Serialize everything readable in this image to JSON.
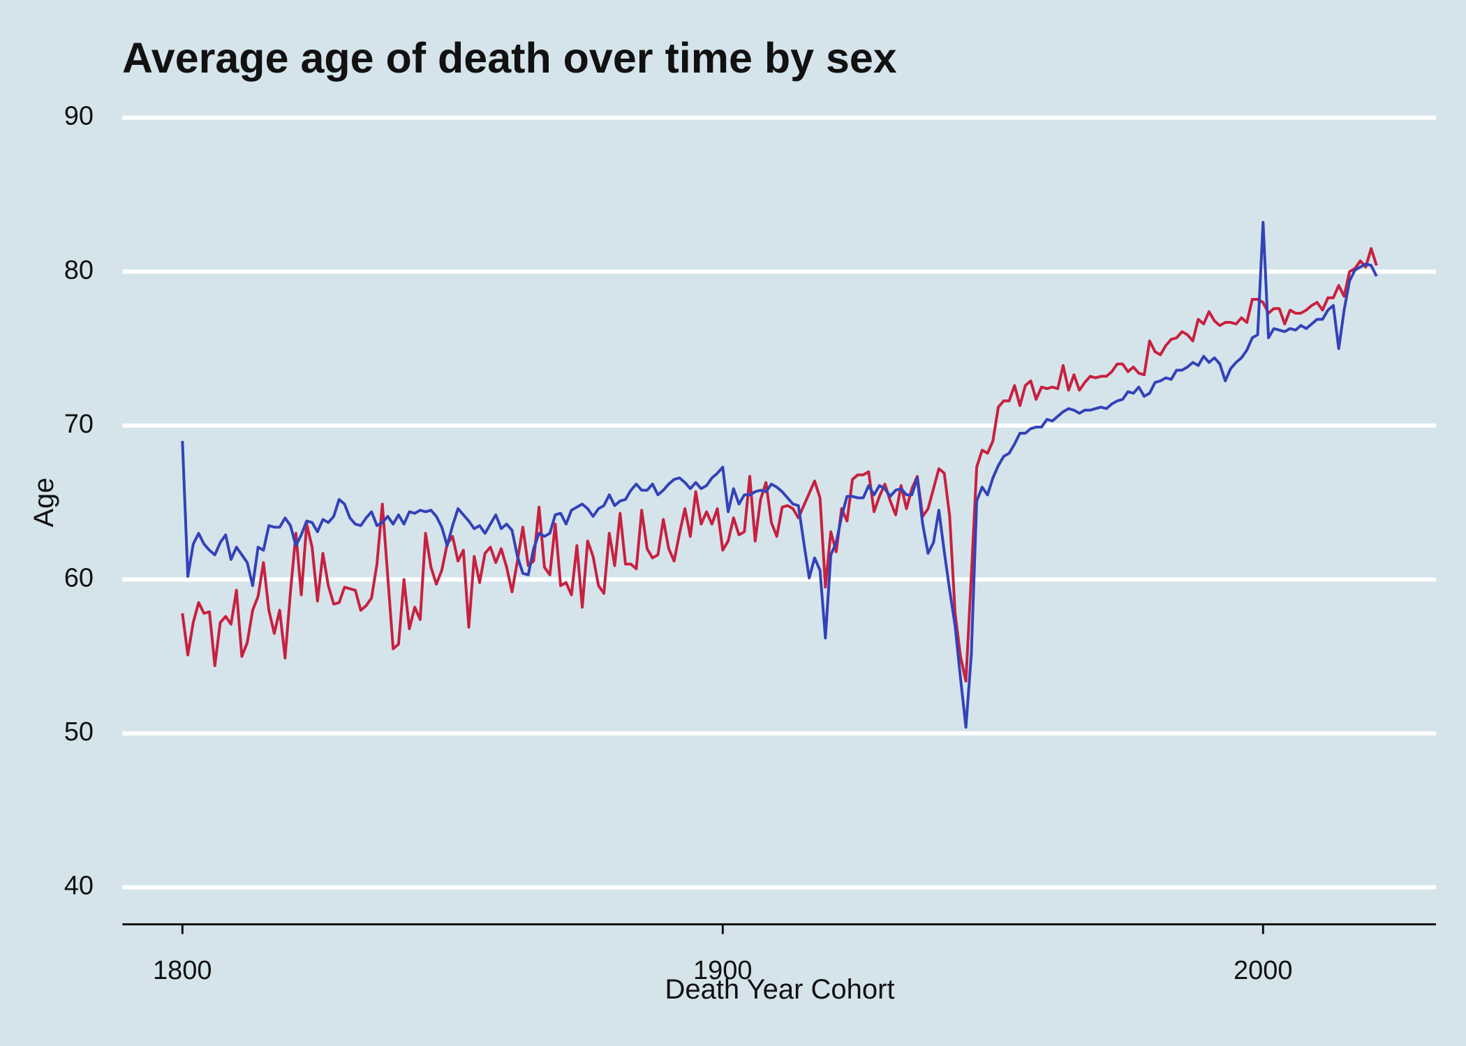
{
  "chart_data": {
    "type": "line",
    "title": "Average age of death over time by sex",
    "x_label": "Death Year Cohort",
    "y_label": "Age",
    "xlim": [
      1788.9,
      2032
    ],
    "xticks": [
      1800,
      1900,
      2000
    ],
    "ylim": [
      37.6,
      91
    ],
    "yticks": [
      40,
      50,
      60,
      70,
      80,
      90
    ],
    "grid": true,
    "x": [
      1800,
      1801,
      1802,
      1803,
      1804,
      1805,
      1806,
      1807,
      1808,
      1809,
      1810,
      1811,
      1812,
      1813,
      1814,
      1815,
      1816,
      1817,
      1818,
      1819,
      1820,
      1821,
      1822,
      1823,
      1824,
      1825,
      1826,
      1827,
      1828,
      1829,
      1830,
      1831,
      1832,
      1833,
      1834,
      1835,
      1836,
      1837,
      1838,
      1839,
      1840,
      1841,
      1842,
      1843,
      1844,
      1845,
      1846,
      1847,
      1848,
      1849,
      1850,
      1851,
      1852,
      1853,
      1854,
      1855,
      1856,
      1857,
      1858,
      1859,
      1860,
      1861,
      1862,
      1863,
      1864,
      1865,
      1866,
      1867,
      1868,
      1869,
      1870,
      1871,
      1872,
      1873,
      1874,
      1875,
      1876,
      1877,
      1878,
      1879,
      1880,
      1881,
      1882,
      1883,
      1884,
      1885,
      1886,
      1887,
      1888,
      1889,
      1890,
      1891,
      1892,
      1893,
      1894,
      1895,
      1896,
      1897,
      1898,
      1899,
      1900,
      1901,
      1902,
      1903,
      1904,
      1905,
      1906,
      1907,
      1908,
      1909,
      1910,
      1911,
      1912,
      1913,
      1914,
      1915,
      1916,
      1917,
      1918,
      1919,
      1920,
      1921,
      1922,
      1923,
      1924,
      1925,
      1926,
      1927,
      1928,
      1929,
      1930,
      1931,
      1932,
      1933,
      1934,
      1935,
      1936,
      1937,
      1938,
      1939,
      1940,
      1941,
      1942,
      1943,
      1944,
      1945,
      1946,
      1947,
      1948,
      1949,
      1950,
      1951,
      1952,
      1953,
      1954,
      1955,
      1956,
      1957,
      1958,
      1959,
      1960,
      1961,
      1962,
      1963,
      1964,
      1965,
      1966,
      1967,
      1968,
      1969,
      1970,
      1971,
      1972,
      1973,
      1974,
      1975,
      1976,
      1977,
      1978,
      1979,
      1980,
      1981,
      1982,
      1983,
      1984,
      1985,
      1986,
      1987,
      1988,
      1989,
      1990,
      1991,
      1992,
      1993,
      1994,
      1995,
      1996,
      1997,
      1998,
      1999,
      2000,
      2001,
      2002,
      2003,
      2004,
      2005,
      2006,
      2007,
      2008,
      2009,
      2010,
      2011,
      2012,
      2013,
      2014,
      2015,
      2016,
      2017,
      2018,
      2019,
      2020,
      2021
    ],
    "series": [
      {
        "color": "#c8203f",
        "values": [
          57.8,
          55.1,
          57.2,
          58.5,
          57.8,
          57.9,
          54.4,
          57.2,
          57.6,
          57.1,
          59.3,
          55.0,
          55.9,
          58.0,
          58.9,
          61.1,
          58.0,
          56.5,
          58.0,
          54.9,
          59.2,
          63.0,
          59.0,
          63.6,
          62.1,
          58.6,
          61.7,
          59.6,
          58.4,
          58.5,
          59.5,
          59.4,
          59.3,
          58.0,
          58.3,
          58.8,
          61.0,
          64.9,
          60.2,
          55.5,
          55.8,
          60.0,
          56.8,
          58.2,
          57.4,
          63.0,
          60.8,
          59.7,
          60.6,
          62.3,
          62.8,
          61.2,
          61.9,
          56.9,
          61.5,
          59.8,
          61.7,
          62.1,
          61.1,
          62.0,
          60.8,
          59.2,
          61.2,
          63.4,
          60.9,
          61.2,
          64.7,
          60.8,
          60.3,
          63.6,
          59.6,
          59.8,
          59.0,
          62.2,
          58.2,
          62.5,
          61.5,
          59.6,
          59.1,
          63.0,
          60.9,
          64.3,
          61.0,
          61.0,
          60.7,
          64.5,
          62.0,
          61.4,
          61.6,
          63.9,
          62.0,
          61.2,
          63.0,
          64.6,
          62.8,
          65.7,
          63.6,
          64.4,
          63.6,
          64.6,
          61.9,
          62.5,
          64.0,
          62.9,
          63.1,
          66.7,
          62.5,
          65.2,
          66.3,
          63.7,
          62.8,
          64.7,
          64.8,
          64.6,
          64.0,
          64.8,
          65.6,
          66.4,
          65.3,
          59.5,
          63.1,
          61.8,
          64.6,
          63.8,
          66.5,
          66.8,
          66.8,
          67.0,
          64.4,
          65.4,
          66.2,
          65.1,
          64.2,
          66.1,
          64.6,
          65.9,
          66.7,
          64.1,
          64.6,
          65.9,
          67.2,
          66.9,
          64.1,
          57.8,
          55.0,
          53.4,
          60.2,
          67.3,
          68.4,
          68.2,
          69.0,
          71.2,
          71.6,
          71.6,
          72.6,
          71.3,
          72.6,
          72.9,
          71.7,
          72.5,
          72.4,
          72.5,
          72.4,
          73.9,
          72.3,
          73.3,
          72.3,
          72.8,
          73.2,
          73.1,
          73.2,
          73.2,
          73.5,
          74.0,
          74.0,
          73.5,
          73.8,
          73.4,
          73.3,
          75.5,
          74.8,
          74.6,
          75.2,
          75.6,
          75.7,
          76.1,
          75.9,
          75.5,
          76.9,
          76.6,
          77.4,
          76.8,
          76.5,
          76.7,
          76.7,
          76.6,
          77.0,
          76.7,
          78.2,
          78.2,
          78.0,
          77.3,
          77.6,
          77.6,
          76.6,
          77.5,
          77.3,
          77.3,
          77.5,
          77.8,
          78.0,
          77.5,
          78.3,
          78.3,
          79.1,
          78.4,
          80.0,
          80.2,
          80.7,
          80.3,
          81.5,
          80.4
        ]
      },
      {
        "color": "#3342b8",
        "values": [
          69.0,
          60.2,
          62.3,
          63.0,
          62.3,
          61.9,
          61.6,
          62.4,
          62.9,
          61.3,
          62.1,
          61.6,
          61.1,
          59.6,
          62.1,
          61.9,
          63.5,
          63.4,
          63.4,
          64.0,
          63.5,
          62.2,
          62.9,
          63.8,
          63.7,
          63.1,
          63.9,
          63.7,
          64.1,
          65.2,
          64.9,
          64.0,
          63.6,
          63.5,
          64.0,
          64.4,
          63.5,
          63.7,
          64.1,
          63.6,
          64.2,
          63.6,
          64.4,
          64.3,
          64.5,
          64.4,
          64.5,
          64.1,
          63.4,
          62.2,
          63.5,
          64.6,
          64.2,
          63.8,
          63.3,
          63.5,
          63.0,
          63.6,
          64.2,
          63.3,
          63.6,
          63.2,
          61.5,
          60.4,
          60.3,
          62.0,
          63.0,
          62.8,
          63.0,
          64.2,
          64.3,
          63.6,
          64.5,
          64.7,
          64.9,
          64.6,
          64.1,
          64.6,
          64.8,
          65.5,
          64.8,
          65.1,
          65.2,
          65.8,
          66.2,
          65.8,
          65.8,
          66.2,
          65.5,
          65.8,
          66.2,
          66.5,
          66.6,
          66.3,
          65.9,
          66.3,
          65.9,
          66.1,
          66.6,
          66.9,
          67.3,
          64.4,
          65.9,
          64.9,
          65.5,
          65.5,
          65.7,
          65.8,
          65.7,
          66.2,
          66.0,
          65.7,
          65.3,
          64.9,
          64.8,
          62.4,
          60.1,
          61.4,
          60.6,
          56.2,
          61.6,
          62.4,
          64.1,
          65.4,
          65.4,
          65.3,
          65.3,
          66.1,
          65.5,
          66.1,
          65.9,
          65.4,
          65.8,
          65.9,
          65.5,
          65.5,
          66.6,
          63.6,
          61.7,
          62.4,
          64.5,
          61.8,
          59.3,
          57.0,
          53.6,
          50.4,
          55.1,
          65.1,
          66.0,
          65.5,
          66.6,
          67.4,
          68.0,
          68.2,
          68.8,
          69.5,
          69.5,
          69.8,
          69.9,
          69.9,
          70.4,
          70.3,
          70.6,
          70.9,
          71.1,
          71.0,
          70.8,
          71.0,
          71.0,
          71.1,
          71.2,
          71.1,
          71.4,
          71.6,
          71.7,
          72.2,
          72.1,
          72.5,
          71.9,
          72.1,
          72.8,
          72.9,
          73.1,
          73.0,
          73.6,
          73.6,
          73.8,
          74.1,
          73.9,
          74.5,
          74.1,
          74.4,
          74.0,
          72.9,
          73.7,
          74.1,
          74.4,
          74.9,
          75.7,
          75.9,
          83.2,
          75.7,
          76.3,
          76.2,
          76.1,
          76.3,
          76.2,
          76.5,
          76.3,
          76.6,
          76.9,
          76.9,
          77.5,
          77.8,
          75.0,
          77.5,
          79.4,
          80.1,
          80.3,
          80.5,
          80.4,
          79.7
        ]
      }
    ]
  }
}
